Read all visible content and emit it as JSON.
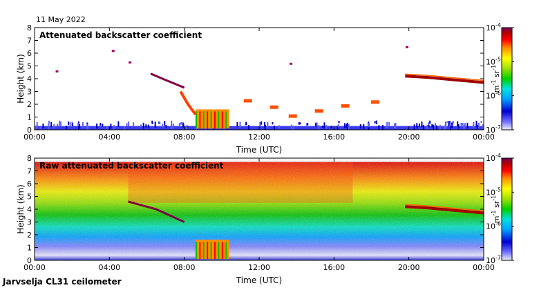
{
  "date_label": "11 May 2022",
  "footer": "Jarvselja CL31 ceilometer",
  "colors": {
    "scale": [
      "#f0f0ff",
      "#7070ff",
      "#0000d0",
      "#00a0ff",
      "#00e0e0",
      "#00d000",
      "#a0e000",
      "#ffff00",
      "#ff9000",
      "#ff0000",
      "#b00000",
      "#700060"
    ]
  },
  "chart_data": [
    {
      "type": "heatmap",
      "title": "Attenuated backscatter coefficient",
      "xlabel": "Time (UTC)",
      "ylabel": "Height (km)",
      "xlim": [
        0,
        24
      ],
      "ylim": [
        0,
        8
      ],
      "x_ticks": [
        "00:00",
        "04:00",
        "08:00",
        "12:00",
        "16:00",
        "20:00",
        "00:00"
      ],
      "y_ticks": [
        "0",
        "1",
        "2",
        "3",
        "4",
        "5",
        "6",
        "7",
        "8"
      ],
      "colorbar": {
        "label_base": "m",
        "label_exp1": "-1",
        "label_mid": " sr",
        "label_exp2": "-1",
        "log_scale": true,
        "range": [
          1e-07,
          0.0001
        ],
        "ticks": [
          {
            "value": 0.0001,
            "base": "10",
            "exp": "-4"
          },
          {
            "value": 1e-05,
            "base": "10",
            "exp": "-5"
          },
          {
            "value": 1e-06,
            "base": "10",
            "exp": "-6"
          },
          {
            "value": 1e-07,
            "base": "10",
            "exp": "-7"
          }
        ]
      },
      "features": {
        "boundary_layer_top_km": 0.3,
        "elevated_layer": [
          [
            6.2,
            4.4
          ],
          [
            7.0,
            3.9
          ],
          [
            8.0,
            3.3
          ]
        ],
        "low_cloud": {
          "start_h": 8.6,
          "end_h": 10.4,
          "base_km": 0.1,
          "top_km": 1.6
        },
        "fall_streak": [
          [
            7.8,
            3.0
          ],
          [
            8.2,
            2.0
          ],
          [
            8.6,
            1.2
          ]
        ],
        "midday_clouds": [
          [
            11.4,
            2.3
          ],
          [
            12.8,
            1.8
          ],
          [
            13.8,
            1.1
          ],
          [
            15.2,
            1.5
          ],
          [
            16.6,
            1.9
          ],
          [
            18.2,
            2.2
          ]
        ],
        "evening_layer": [
          [
            19.8,
            4.2
          ],
          [
            21.0,
            4.1
          ],
          [
            22.5,
            3.9
          ],
          [
            24.0,
            3.7
          ]
        ],
        "sparse_points": [
          [
            1.2,
            4.6
          ],
          [
            4.2,
            6.2
          ],
          [
            5.1,
            5.3
          ],
          [
            13.7,
            5.2
          ],
          [
            19.9,
            6.5
          ]
        ]
      }
    },
    {
      "type": "heatmap",
      "title": "Raw attenuated backscatter coefficient",
      "xlabel": "Time (UTC)",
      "ylabel": "Height (km)",
      "xlim": [
        0,
        24
      ],
      "ylim": [
        0,
        8
      ],
      "x_ticks": [
        "00:00",
        "04:00",
        "08:00",
        "12:00",
        "16:00",
        "20:00",
        "00:00"
      ],
      "y_ticks": [
        "0",
        "1",
        "2",
        "3",
        "4",
        "5",
        "6",
        "7",
        "8"
      ],
      "colorbar": {
        "label_base": "m",
        "label_exp1": "-1",
        "label_mid": " sr",
        "label_exp2": "-1",
        "log_scale": true,
        "range": [
          1e-07,
          0.0001
        ],
        "ticks": [
          {
            "value": 0.0001,
            "base": "10",
            "exp": "-4"
          },
          {
            "value": 1e-05,
            "base": "10",
            "exp": "-5"
          },
          {
            "value": 1e-06,
            "base": "10",
            "exp": "-6"
          },
          {
            "value": 1e-07,
            "base": "10",
            "exp": "-7"
          }
        ]
      },
      "features": {
        "noise_top_km": 7.7,
        "elevated_layer": [
          [
            5.0,
            4.6
          ],
          [
            6.5,
            4.0
          ],
          [
            8.0,
            3.0
          ]
        ],
        "low_cloud": {
          "start_h": 8.6,
          "end_h": 10.4,
          "base_km": 0.1,
          "top_km": 1.6
        },
        "evening_layer": [
          [
            19.8,
            4.2
          ],
          [
            21.0,
            4.1
          ],
          [
            22.5,
            3.9
          ],
          [
            24.0,
            3.7
          ]
        ]
      }
    }
  ]
}
